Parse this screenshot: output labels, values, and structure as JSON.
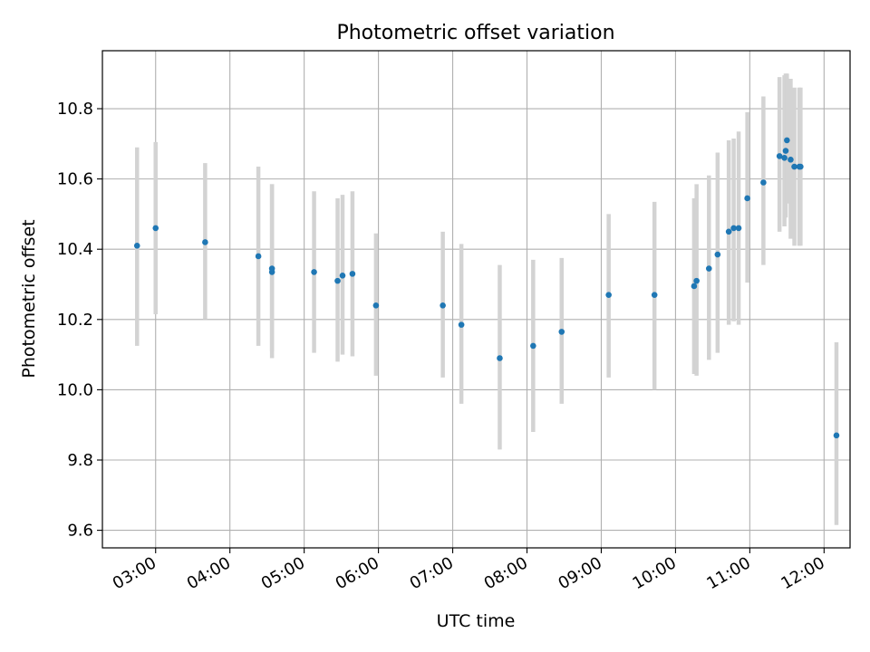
{
  "chart_data": {
    "type": "scatter",
    "title": "Photometric offset variation",
    "xlabel": "UTC time",
    "ylabel": "Photometric offset",
    "x_ticks": [
      "03:00",
      "04:00",
      "05:00",
      "06:00",
      "07:00",
      "08:00",
      "09:00",
      "10:00",
      "11:00",
      "12:00"
    ],
    "y_ticks": [
      "9.6",
      "9.8",
      "10.0",
      "10.2",
      "10.4",
      "10.6",
      "10.8"
    ],
    "xlim": [
      "02:17",
      "12:21"
    ],
    "ylim": [
      9.55,
      10.965
    ],
    "grid": true,
    "colors": {
      "points": "#1f77b4",
      "errorbars": "#d3d3d3",
      "grid": "#b0b0b0"
    },
    "series": [
      {
        "x": [
          "02:45",
          "03:00",
          "03:40",
          "04:23",
          "04:34",
          "04:34",
          "05:08",
          "05:27",
          "05:31",
          "05:39",
          "05:58",
          "06:52",
          "07:07",
          "07:38",
          "08:05",
          "08:28",
          "09:06",
          "09:43",
          "10:15",
          "10:17",
          "10:27",
          "10:34",
          "10:43",
          "10:47",
          "10:51",
          "10:58",
          "11:11",
          "11:24",
          "11:28",
          "11:29",
          "11:30",
          "11:33",
          "11:36",
          "11:40",
          "11:41",
          "12:10"
        ],
        "y": [
          10.41,
          10.46,
          10.42,
          10.38,
          10.345,
          10.335,
          10.335,
          10.31,
          10.325,
          10.33,
          10.24,
          10.24,
          10.185,
          10.09,
          10.125,
          10.165,
          10.27,
          10.27,
          10.295,
          10.31,
          10.345,
          10.385,
          10.45,
          10.46,
          10.46,
          10.545,
          10.59,
          10.665,
          10.66,
          10.68,
          10.71,
          10.655,
          10.635,
          10.635,
          10.635,
          9.87
        ],
        "y_low": [
          10.125,
          10.215,
          10.2,
          10.125,
          10.09,
          10.11,
          10.105,
          10.08,
          10.1,
          10.095,
          10.04,
          10.035,
          9.96,
          9.83,
          9.88,
          9.96,
          10.035,
          10.0,
          10.045,
          10.04,
          10.085,
          10.105,
          10.185,
          10.195,
          10.185,
          10.305,
          10.355,
          10.45,
          10.465,
          10.49,
          10.53,
          10.43,
          10.41,
          10.41,
          10.41,
          9.615
        ],
        "y_high": [
          10.69,
          10.705,
          10.645,
          10.635,
          10.585,
          10.585,
          10.565,
          10.545,
          10.555,
          10.565,
          10.445,
          10.45,
          10.415,
          10.355,
          10.37,
          10.375,
          10.5,
          10.535,
          10.545,
          10.585,
          10.61,
          10.675,
          10.71,
          10.715,
          10.735,
          10.79,
          10.835,
          10.89,
          10.895,
          10.9,
          10.9,
          10.885,
          10.86,
          10.86,
          10.86,
          10.135
        ]
      }
    ]
  }
}
